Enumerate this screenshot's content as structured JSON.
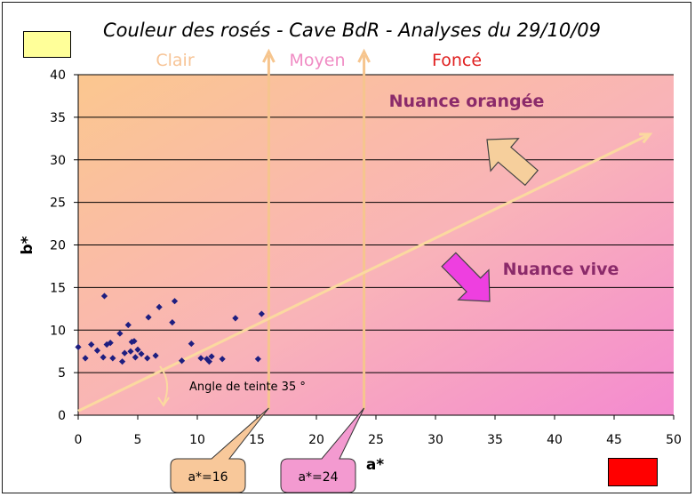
{
  "chart_data": {
    "type": "scatter",
    "title": "Couleur des rosés - Cave BdR - Analyses du 29/10/09",
    "xlabel": "a*",
    "ylabel": "b*",
    "xlim": [
      0,
      50
    ],
    "ylim": [
      0,
      40
    ],
    "x_ticks": [
      0,
      5,
      10,
      15,
      20,
      25,
      30,
      35,
      40,
      45,
      50
    ],
    "y_ticks": [
      0,
      5,
      10,
      15,
      20,
      25,
      30,
      35,
      40
    ],
    "grid": "horizontal",
    "points": [
      [
        0,
        8.0
      ],
      [
        0.6,
        6.7
      ],
      [
        1.1,
        8.3
      ],
      [
        1.6,
        7.6
      ],
      [
        2.1,
        6.8
      ],
      [
        2.2,
        14.0
      ],
      [
        2.4,
        8.3
      ],
      [
        2.7,
        8.5
      ],
      [
        2.9,
        6.7
      ],
      [
        3.5,
        9.6
      ],
      [
        3.7,
        6.3
      ],
      [
        3.9,
        7.3
      ],
      [
        4.2,
        10.6
      ],
      [
        4.4,
        7.5
      ],
      [
        4.5,
        8.6
      ],
      [
        4.7,
        8.7
      ],
      [
        4.8,
        6.8
      ],
      [
        5.0,
        7.7
      ],
      [
        5.3,
        7.2
      ],
      [
        5.8,
        6.7
      ],
      [
        5.9,
        11.5
      ],
      [
        6.5,
        7.0
      ],
      [
        6.8,
        12.7
      ],
      [
        7.9,
        10.9
      ],
      [
        8.1,
        13.4
      ],
      [
        8.7,
        6.4
      ],
      [
        9.5,
        8.4
      ],
      [
        10.3,
        6.7
      ],
      [
        10.8,
        6.6
      ],
      [
        11.0,
        6.3
      ],
      [
        11.2,
        6.9
      ],
      [
        12.1,
        6.6
      ],
      [
        13.2,
        11.4
      ],
      [
        15.1,
        6.6
      ],
      [
        15.4,
        11.9
      ]
    ],
    "point_color": "#1e1e80",
    "categories": [
      "Clair",
      "Moyen",
      "Foncé"
    ],
    "category_colors": [
      "#f7c496",
      "#f08cc4",
      "#e02020"
    ],
    "thresholds": [
      {
        "x": 16,
        "label": "a*=16"
      },
      {
        "x": 24,
        "label": "a*=24"
      }
    ],
    "hue_line": {
      "from": [
        0,
        0.5
      ],
      "to": [
        48,
        33
      ]
    },
    "hue_angle_label": "Angle de teinte 35 °",
    "annotation_orange": "Nuance orangée",
    "annotation_vive": "Nuance vive",
    "annotation_color": "#8b2a6a",
    "arrow_orange_color": "#f6cf9c",
    "arrow_vive_color": "#ee3fe0",
    "swatch_light": "#ffff99",
    "swatch_dark": "#ff0000",
    "threshold_line_color": "#f6c58e",
    "callout_16_color": "#f8c89a",
    "callout_24_color": "#f39ad0"
  }
}
